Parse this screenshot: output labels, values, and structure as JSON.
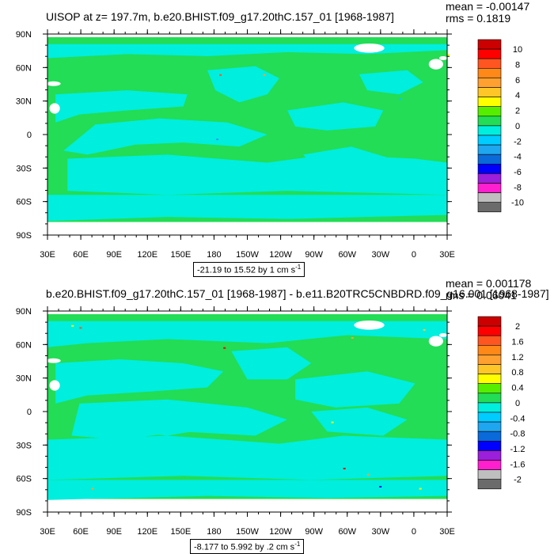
{
  "colors": {
    "ocean_green": "#22dd55",
    "ocean_cyan": "#00eedd",
    "land_bg": "#22dd55",
    "masked": "#ffffff"
  },
  "palette": [
    "#6b6b6b",
    "#bfbfbf",
    "#ff1fcf",
    "#9b1fdb",
    "#0000ff",
    "#0a6ad9",
    "#1ea6f0",
    "#00ccff",
    "#00eedd",
    "#22dd55",
    "#55ee00",
    "#ffff00",
    "#ffc627",
    "#ffa030",
    "#ff8818",
    "#ff5520",
    "#ff0000",
    "#cc0000"
  ],
  "x_ticks": [
    "30E",
    "60E",
    "90E",
    "120E",
    "150E",
    "180",
    "150W",
    "120W",
    "90W",
    "60W",
    "30W",
    "0",
    "30E"
  ],
  "y_ticks": [
    "90N",
    "60N",
    "30N",
    "0",
    "30S",
    "60S",
    "90S"
  ],
  "panels": [
    {
      "title": "UISOP at z= 197.7m, b.e20.BHIST.f09_g17.20thC.157_01 [1968-1987]",
      "mean": "mean = -0.00147",
      "rms": "rms = 0.1819",
      "contour_info": "-21.19 to 15.52 by 1 cm s",
      "contour_exp": "-1",
      "colorbar_labels": [
        "10",
        "8",
        "6",
        "4",
        "2",
        "0",
        "-2",
        "-4",
        "-6",
        "-8",
        "-10"
      ]
    },
    {
      "title": "b.e20.BHIST.f09_g17.20thC.157_01 [1968-1987] - b.e11.B20TRC5CNBDRD.f09_g16.001 [1968-1987]",
      "mean": "mean = 0.001178",
      "rms": "rms = 0.06041",
      "contour_info": "-8.177 to 5.992 by .2 cm s",
      "contour_exp": "-1",
      "colorbar_labels": [
        "2",
        "1.6",
        "1.2",
        "0.8",
        "0.4",
        "0",
        "-0.4",
        "-0.8",
        "-1.2",
        "-1.6",
        "-2"
      ]
    }
  ]
}
